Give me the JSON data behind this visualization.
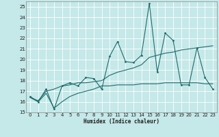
{
  "xlabel": "Humidex (Indice chaleur)",
  "xlim": [
    -0.5,
    23.5
  ],
  "ylim": [
    15,
    25.5
  ],
  "yticks": [
    15,
    16,
    17,
    18,
    19,
    20,
    21,
    22,
    23,
    24,
    25
  ],
  "xticks": [
    0,
    1,
    2,
    3,
    4,
    5,
    6,
    7,
    8,
    9,
    10,
    11,
    12,
    13,
    14,
    15,
    16,
    17,
    18,
    19,
    20,
    21,
    22,
    23
  ],
  "background_color": "#c5e8e8",
  "line_color": "#1e6b6b",
  "grid_color": "#ffffff",
  "line1_x": [
    0,
    1,
    2,
    3,
    4,
    5,
    6,
    7,
    8,
    9,
    10,
    11,
    12,
    13,
    14,
    15,
    16,
    17,
    18,
    19,
    20,
    21,
    22,
    23
  ],
  "line1_y": [
    16.5,
    16.0,
    17.2,
    15.3,
    17.5,
    17.8,
    17.5,
    18.3,
    18.2,
    17.2,
    20.3,
    21.7,
    19.8,
    19.7,
    20.4,
    25.3,
    18.8,
    22.5,
    21.8,
    17.6,
    17.6,
    21.1,
    18.3,
    17.2
  ],
  "line2_x": [
    0,
    1,
    2,
    3,
    4,
    5,
    6,
    7,
    8,
    9,
    10,
    11,
    12,
    13,
    14,
    15,
    16,
    17,
    18,
    19,
    20,
    21,
    22,
    23
  ],
  "line2_y": [
    16.4,
    16.1,
    17.0,
    17.2,
    17.5,
    17.6,
    17.8,
    17.8,
    17.9,
    18.0,
    18.5,
    18.8,
    19.0,
    19.2,
    19.5,
    20.2,
    20.4,
    20.6,
    20.7,
    20.9,
    21.0,
    21.1,
    21.2,
    21.3
  ],
  "line3_x": [
    0,
    1,
    2,
    3,
    4,
    5,
    6,
    7,
    8,
    9,
    10,
    11,
    12,
    13,
    14,
    15,
    16,
    17,
    18,
    19,
    20,
    21,
    22,
    23
  ],
  "line3_y": [
    16.4,
    16.0,
    16.8,
    15.4,
    16.0,
    16.5,
    16.8,
    17.0,
    17.2,
    17.5,
    17.5,
    17.6,
    17.6,
    17.6,
    17.7,
    17.7,
    17.7,
    17.8,
    17.8,
    17.8,
    17.8,
    17.8,
    17.7,
    17.7
  ]
}
